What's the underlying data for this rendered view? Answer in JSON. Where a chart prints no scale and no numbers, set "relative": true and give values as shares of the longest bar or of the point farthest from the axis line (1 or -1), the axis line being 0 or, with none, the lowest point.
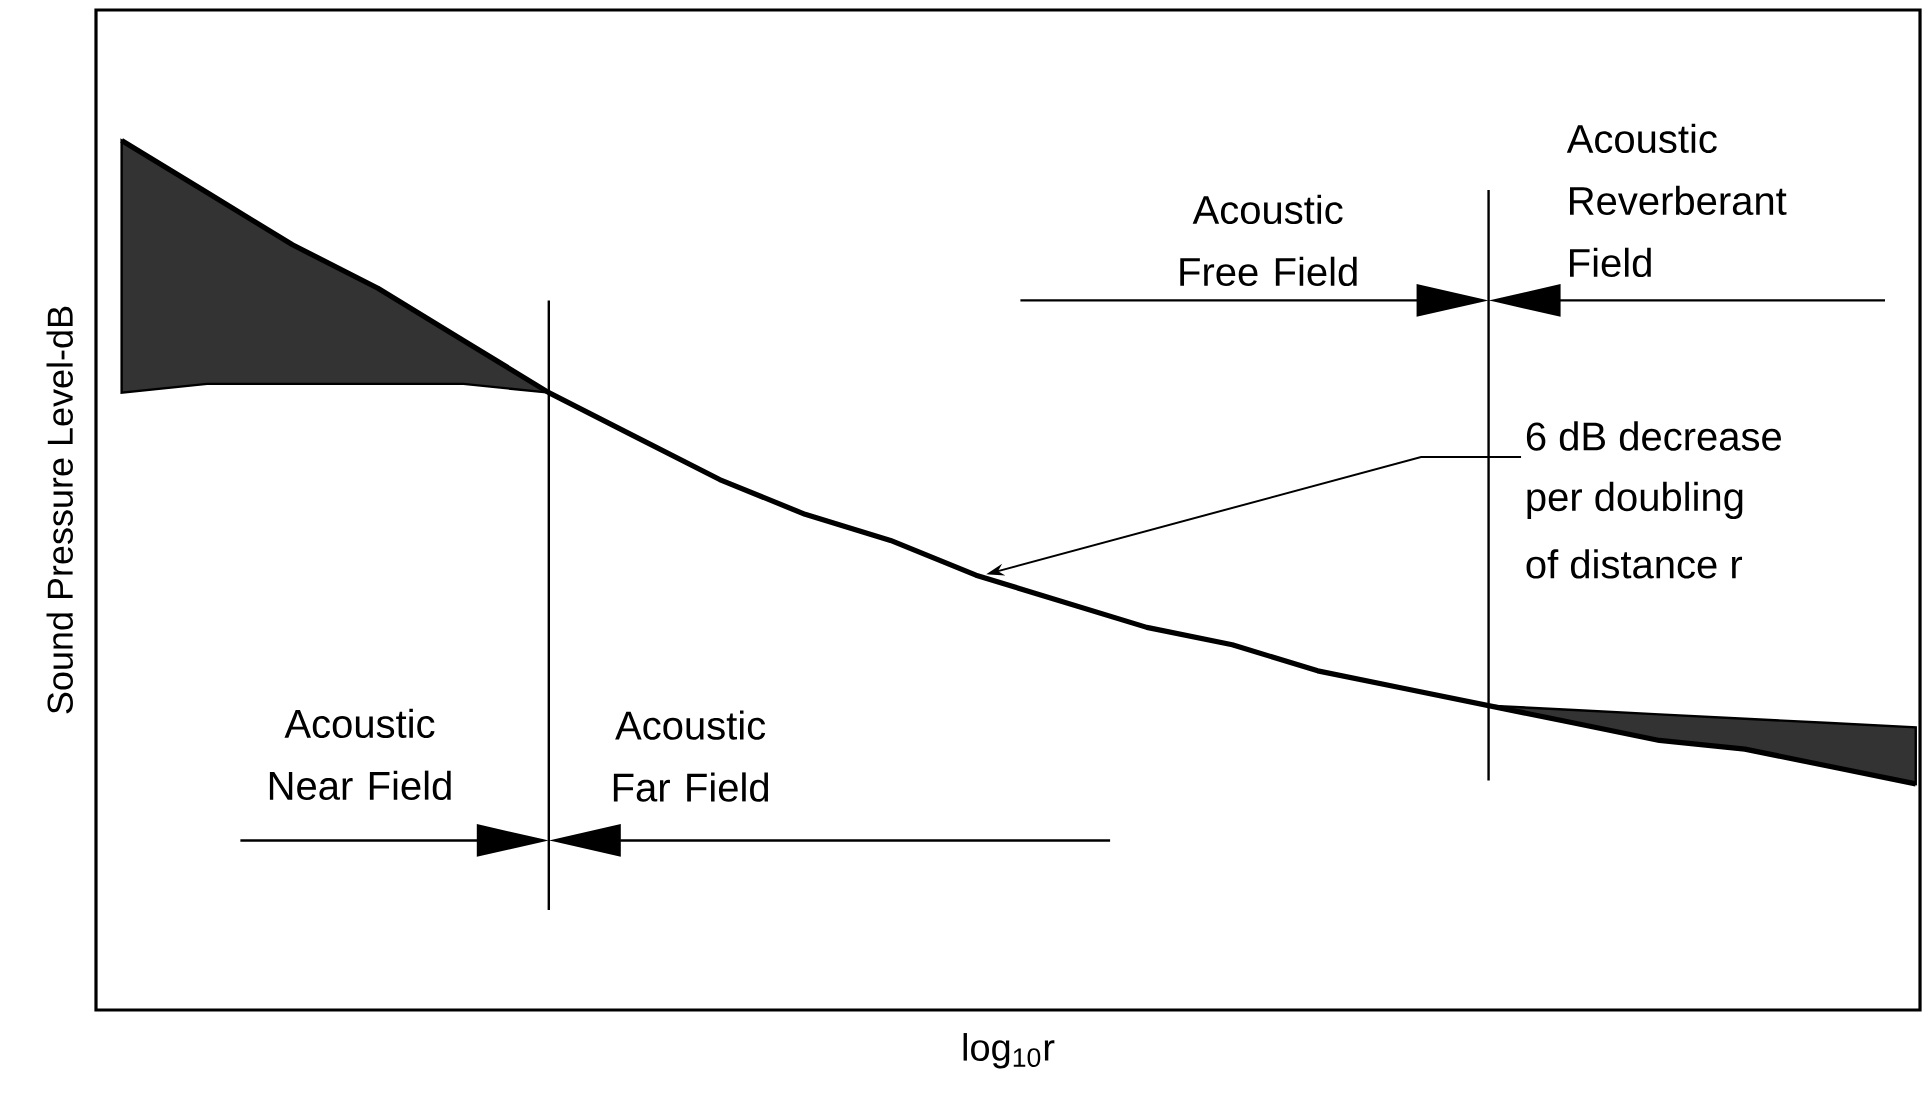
{
  "chart_data": {
    "type": "line",
    "relative": true,
    "xlabel": "log$_{10}$r",
    "ylabel": "Sound Pressure Level-dB",
    "categories": [
      null,
      null,
      null,
      null,
      null,
      null,
      null,
      null,
      null,
      null,
      null,
      null,
      null,
      null,
      null,
      null,
      null,
      null,
      null,
      null,
      null,
      null
    ],
    "series": [
      {
        "color": "#000000",
        "values": [
          1,
          0.94,
          0.88,
          0.83,
          0.77,
          0.71,
          0.66,
          0.61,
          0.57,
          0.54,
          0.5,
          0.47,
          0.44,
          0.42,
          0.39,
          0.37,
          0.35,
          0.33,
          0.31,
          0.3,
          0.28,
          0.26
        ],
        "lower": [
          0.71,
          0.72,
          0.72,
          0.72,
          0.72,
          0.71,
          null,
          null,
          null,
          null,
          null,
          null,
          null,
          null,
          null,
          null,
          0.35,
          0.33,
          0.31,
          0.3,
          0.28,
          0.26
        ],
        "upper": [
          1,
          0.94,
          0.88,
          0.83,
          0.77,
          0.71,
          null,
          null,
          null,
          null,
          null,
          null,
          null,
          null,
          null,
          null,
          0.35,
          0.345,
          0.34,
          0.335,
          0.33,
          0.325
        ]
      }
    ],
    "annotations": [
      "Acoustic Near Field",
      "Acoustic Far Field",
      "Acoustic Free Field",
      "Acoustic Reverberant Field",
      "6 dB decrease",
      "per doubling",
      "of distance r"
    ],
    "marker": "none",
    "line_style": "solid"
  }
}
